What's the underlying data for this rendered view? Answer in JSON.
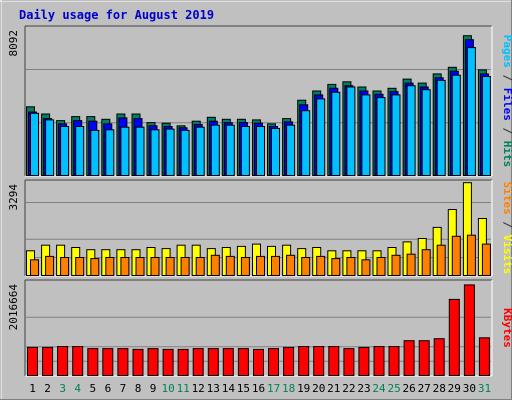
{
  "chart_data": {
    "type": "bar",
    "title": "Daily usage for August 2019",
    "days": [
      "1",
      "2",
      "3",
      "4",
      "5",
      "6",
      "7",
      "8",
      "9",
      "10",
      "11",
      "12",
      "13",
      "14",
      "15",
      "16",
      "17",
      "18",
      "19",
      "20",
      "21",
      "22",
      "23",
      "24",
      "25",
      "26",
      "27",
      "28",
      "29",
      "30",
      "31"
    ],
    "weekend_days": [
      "3",
      "4",
      "10",
      "11",
      "17",
      "18",
      "24",
      "25",
      "31"
    ],
    "panels": [
      {
        "id": "hits",
        "ytick_label": "8092",
        "ytick_value": 8092,
        "ylim": [
          0,
          11400
        ],
        "axis_label_parts": [
          {
            "text": "Pages",
            "color": "#00c0ff"
          },
          {
            "text": " / ",
            "color": "#303030"
          },
          {
            "text": "Files",
            "color": "#0000ff"
          },
          {
            "text": " / ",
            "color": "#303030"
          },
          {
            "text": "Hits",
            "color": "#008060"
          }
        ],
        "series": [
          {
            "name": "Hits",
            "color": "#008060",
            "values": [
              5300,
              4750,
              4250,
              4550,
              4550,
              4350,
              4750,
              4750,
              4100,
              4050,
              3850,
              4200,
              4500,
              4350,
              4350,
              4300,
              4000,
              4400,
              5800,
              6500,
              7000,
              7200,
              6800,
              6500,
              6700,
              7400,
              7100,
              7800,
              8300,
              10700,
              8100
            ]
          },
          {
            "name": "Files",
            "color": "#0000ff",
            "values": [
              4900,
              4400,
              4000,
              4250,
              4200,
              4000,
              4450,
              4400,
              3850,
              3800,
              3700,
              3950,
              4200,
              4100,
              4100,
              4050,
              3800,
              4150,
              5450,
              6200,
              6700,
              6900,
              6500,
              6250,
              6450,
              7100,
              6800,
              7500,
              8000,
              10400,
              7800
            ]
          },
          {
            "name": "Pages",
            "color": "#00c0ff",
            "values": [
              4800,
              4300,
              3800,
              3800,
              3500,
              3550,
              3750,
              3750,
              3550,
              3600,
              3500,
              3750,
              3900,
              3900,
              3800,
              3800,
              3650,
              3900,
              5000,
              5900,
              6400,
              6800,
              6200,
              6000,
              6200,
              6900,
              6600,
              7300,
              7700,
              9800,
              7600
            ]
          }
        ]
      },
      {
        "id": "visits",
        "ytick_label": "3294",
        "ytick_value": 3294,
        "ylim": [
          0,
          4300
        ],
        "axis_label_parts": [
          {
            "text": "Sites",
            "color": "#ff8000"
          },
          {
            "text": " / ",
            "color": "#303030"
          },
          {
            "text": "Visits",
            "color": "#ffff00"
          }
        ],
        "series": [
          {
            "name": "Visits",
            "color": "#ffff00",
            "values": [
              1150,
              1400,
              1400,
              1300,
              1200,
              1200,
              1200,
              1200,
              1300,
              1250,
              1400,
              1400,
              1250,
              1300,
              1350,
              1450,
              1350,
              1400,
              1250,
              1300,
              1150,
              1150,
              1150,
              1150,
              1300,
              1550,
              1700,
              2200,
              3000,
              4200,
              2600
            ]
          },
          {
            "name": "Sites",
            "color": "#ff8000",
            "values": [
              750,
              900,
              850,
              850,
              800,
              850,
              850,
              850,
              850,
              850,
              850,
              850,
              950,
              900,
              850,
              900,
              900,
              950,
              850,
              900,
              800,
              850,
              750,
              850,
              950,
              1000,
              1200,
              1400,
              1800,
              1850,
              1450
            ]
          }
        ]
      },
      {
        "id": "kbytes",
        "ytick_label": "2016664",
        "ytick_value": 2016664,
        "ylim": [
          0,
          3300000
        ],
        "axis_label_parts": [
          {
            "text": "KBytes",
            "color": "#ff0000"
          }
        ],
        "series": [
          {
            "name": "KBytes",
            "color": "#ff0000",
            "values": [
              1000000,
              1000000,
              1030000,
              1030000,
              960000,
              960000,
              960000,
              930000,
              960000,
              930000,
              930000,
              960000,
              960000,
              960000,
              960000,
              930000,
              960000,
              1000000,
              1030000,
              1030000,
              1030000,
              960000,
              1000000,
              1030000,
              1030000,
              1230000,
              1230000,
              1300000,
              2650000,
              3150000,
              1330000
            ]
          }
        ]
      }
    ]
  }
}
